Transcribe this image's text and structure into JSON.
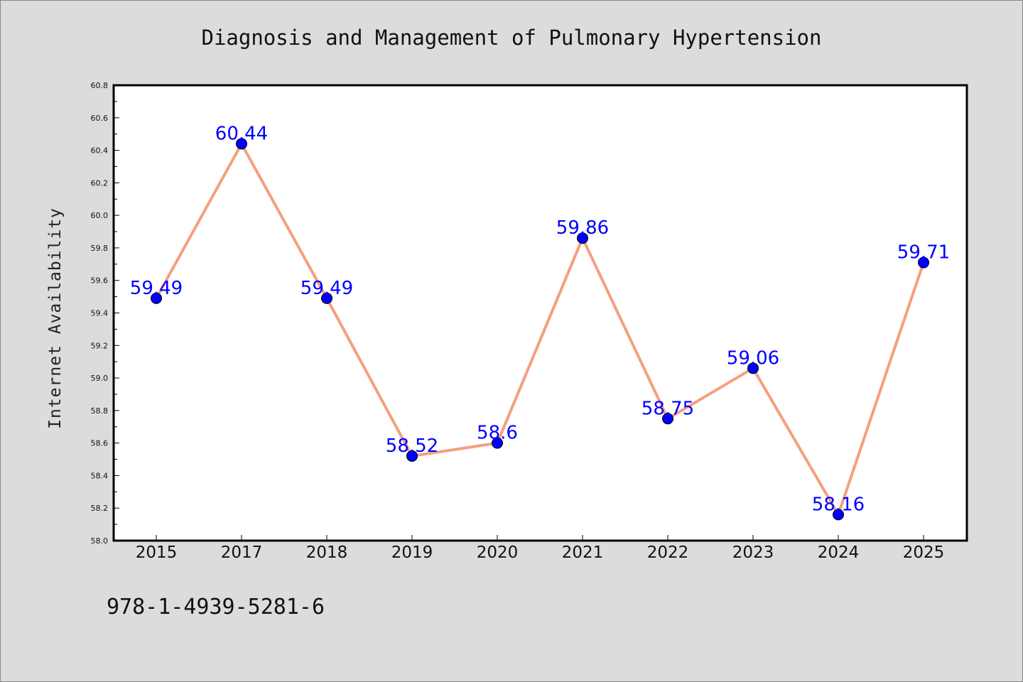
{
  "chart_data": {
    "type": "line",
    "title": "Diagnosis and Management of Pulmonary Hypertension",
    "xlabel": "",
    "ylabel": "Internet Availability",
    "categories": [
      "2015",
      "2017",
      "2018",
      "2019",
      "2020",
      "2021",
      "2022",
      "2023",
      "2024",
      "2025"
    ],
    "series": [
      {
        "values": [
          59.49,
          60.44,
          59.49,
          58.52,
          58.6,
          59.86,
          58.75,
          59.06,
          58.16,
          59.71
        ],
        "labels": [
          "59.49",
          "60.44",
          "59.49",
          "58.52",
          "58.6",
          "59.86",
          "58.75",
          "59.06",
          "58.16",
          "59.71"
        ],
        "line_color": "#f4a07e",
        "marker_color": "#0000ff"
      }
    ],
    "ylim": [
      58.0,
      60.8
    ],
    "yticks": [
      "58.0",
      "58.2",
      "58.4",
      "58.6",
      "58.8",
      "59.0",
      "59.2",
      "59.4",
      "59.6",
      "59.8",
      "60.0",
      "60.2",
      "60.4",
      "60.6",
      "60.8"
    ],
    "grid": false,
    "legend": "none"
  },
  "footer": {
    "isbn": "978-1-4939-5281-6"
  },
  "colors": {
    "background": "#dcdcdc",
    "plot_background": "#ffffff",
    "line": "#f4a07e",
    "marker": "#0000ff",
    "data_label": "#0000ff"
  }
}
